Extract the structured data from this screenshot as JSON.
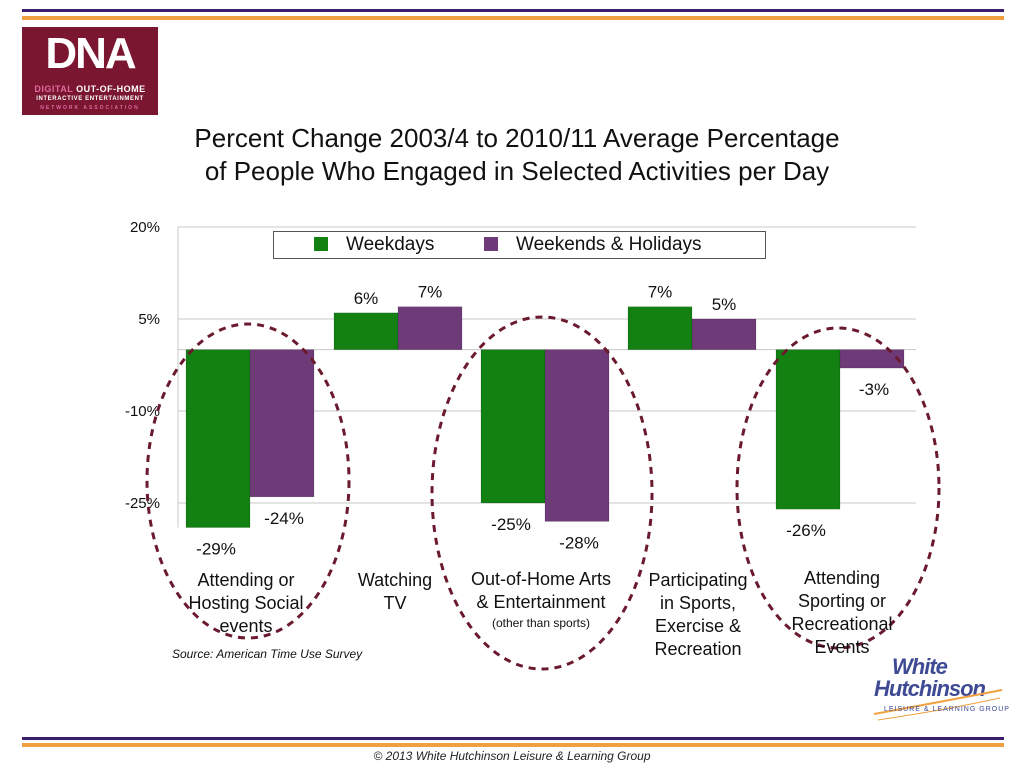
{
  "colors": {
    "accent_purple": "#3b1f6e",
    "accent_orange": "#f0a040",
    "weekdays": "#128112",
    "weekends": "#6e3a78",
    "ellipse": "#6b1a2e"
  },
  "logo": {
    "word": "DNA",
    "line1_highlight": "DIGITAL",
    "line1_rest": " OUT-OF-HOME",
    "line2": "INTERACTIVE ENTERTAINMENT",
    "line3": "NETWORK ASSOCIATION"
  },
  "chart_data": {
    "type": "bar",
    "title": "Percent Change 2003/4 to 2010/11 Average Percentage of People Who Engaged in Selected Activities per Day",
    "title_lines": [
      "Percent Change 2003/4 to 2010/11 Average Percentage",
      "of People Who Engaged in Selected Activities per Day"
    ],
    "categories": [
      {
        "lines": [
          "Attending or",
          "Hosting Social",
          "events"
        ],
        "sub": ""
      },
      {
        "lines": [
          "Watching",
          "TV"
        ],
        "sub": ""
      },
      {
        "lines": [
          "Out-of-Home Arts",
          "& Entertainment"
        ],
        "sub": "(other than sports)"
      },
      {
        "lines": [
          "Participating",
          "in Sports,",
          "Exercise &",
          "Recreation"
        ],
        "sub": ""
      },
      {
        "lines": [
          "Attending",
          "Sporting or",
          "Recreational",
          "Events"
        ],
        "sub": ""
      }
    ],
    "series": [
      {
        "name": "Weekdays",
        "values": [
          -29,
          6,
          -25,
          7,
          -26
        ],
        "labels": [
          "-29%",
          "6%",
          "-25%",
          "7%",
          "-26%"
        ]
      },
      {
        "name": "Weekends & Holidays",
        "values": [
          -24,
          7,
          -28,
          5,
          -3
        ],
        "labels": [
          "-24%",
          "7%",
          "-28%",
          "5%",
          "-3%"
        ]
      }
    ],
    "yticks": [
      20,
      5,
      -10,
      -25
    ],
    "ytick_labels": [
      "20%",
      "5%",
      "-10%",
      "-25%"
    ],
    "ylim": [
      -29,
      20
    ],
    "grid": true,
    "legend_position": "top",
    "highlighted_categories": [
      0,
      2,
      4
    ]
  },
  "source": "Source: American Time Use Survey",
  "brand": {
    "line1": "White",
    "line2": "Hutchinson",
    "line3": "LEISURE & LEARNING GROUP"
  },
  "copyright": "© 2013 White Hutchinson Leisure & Learning Group"
}
